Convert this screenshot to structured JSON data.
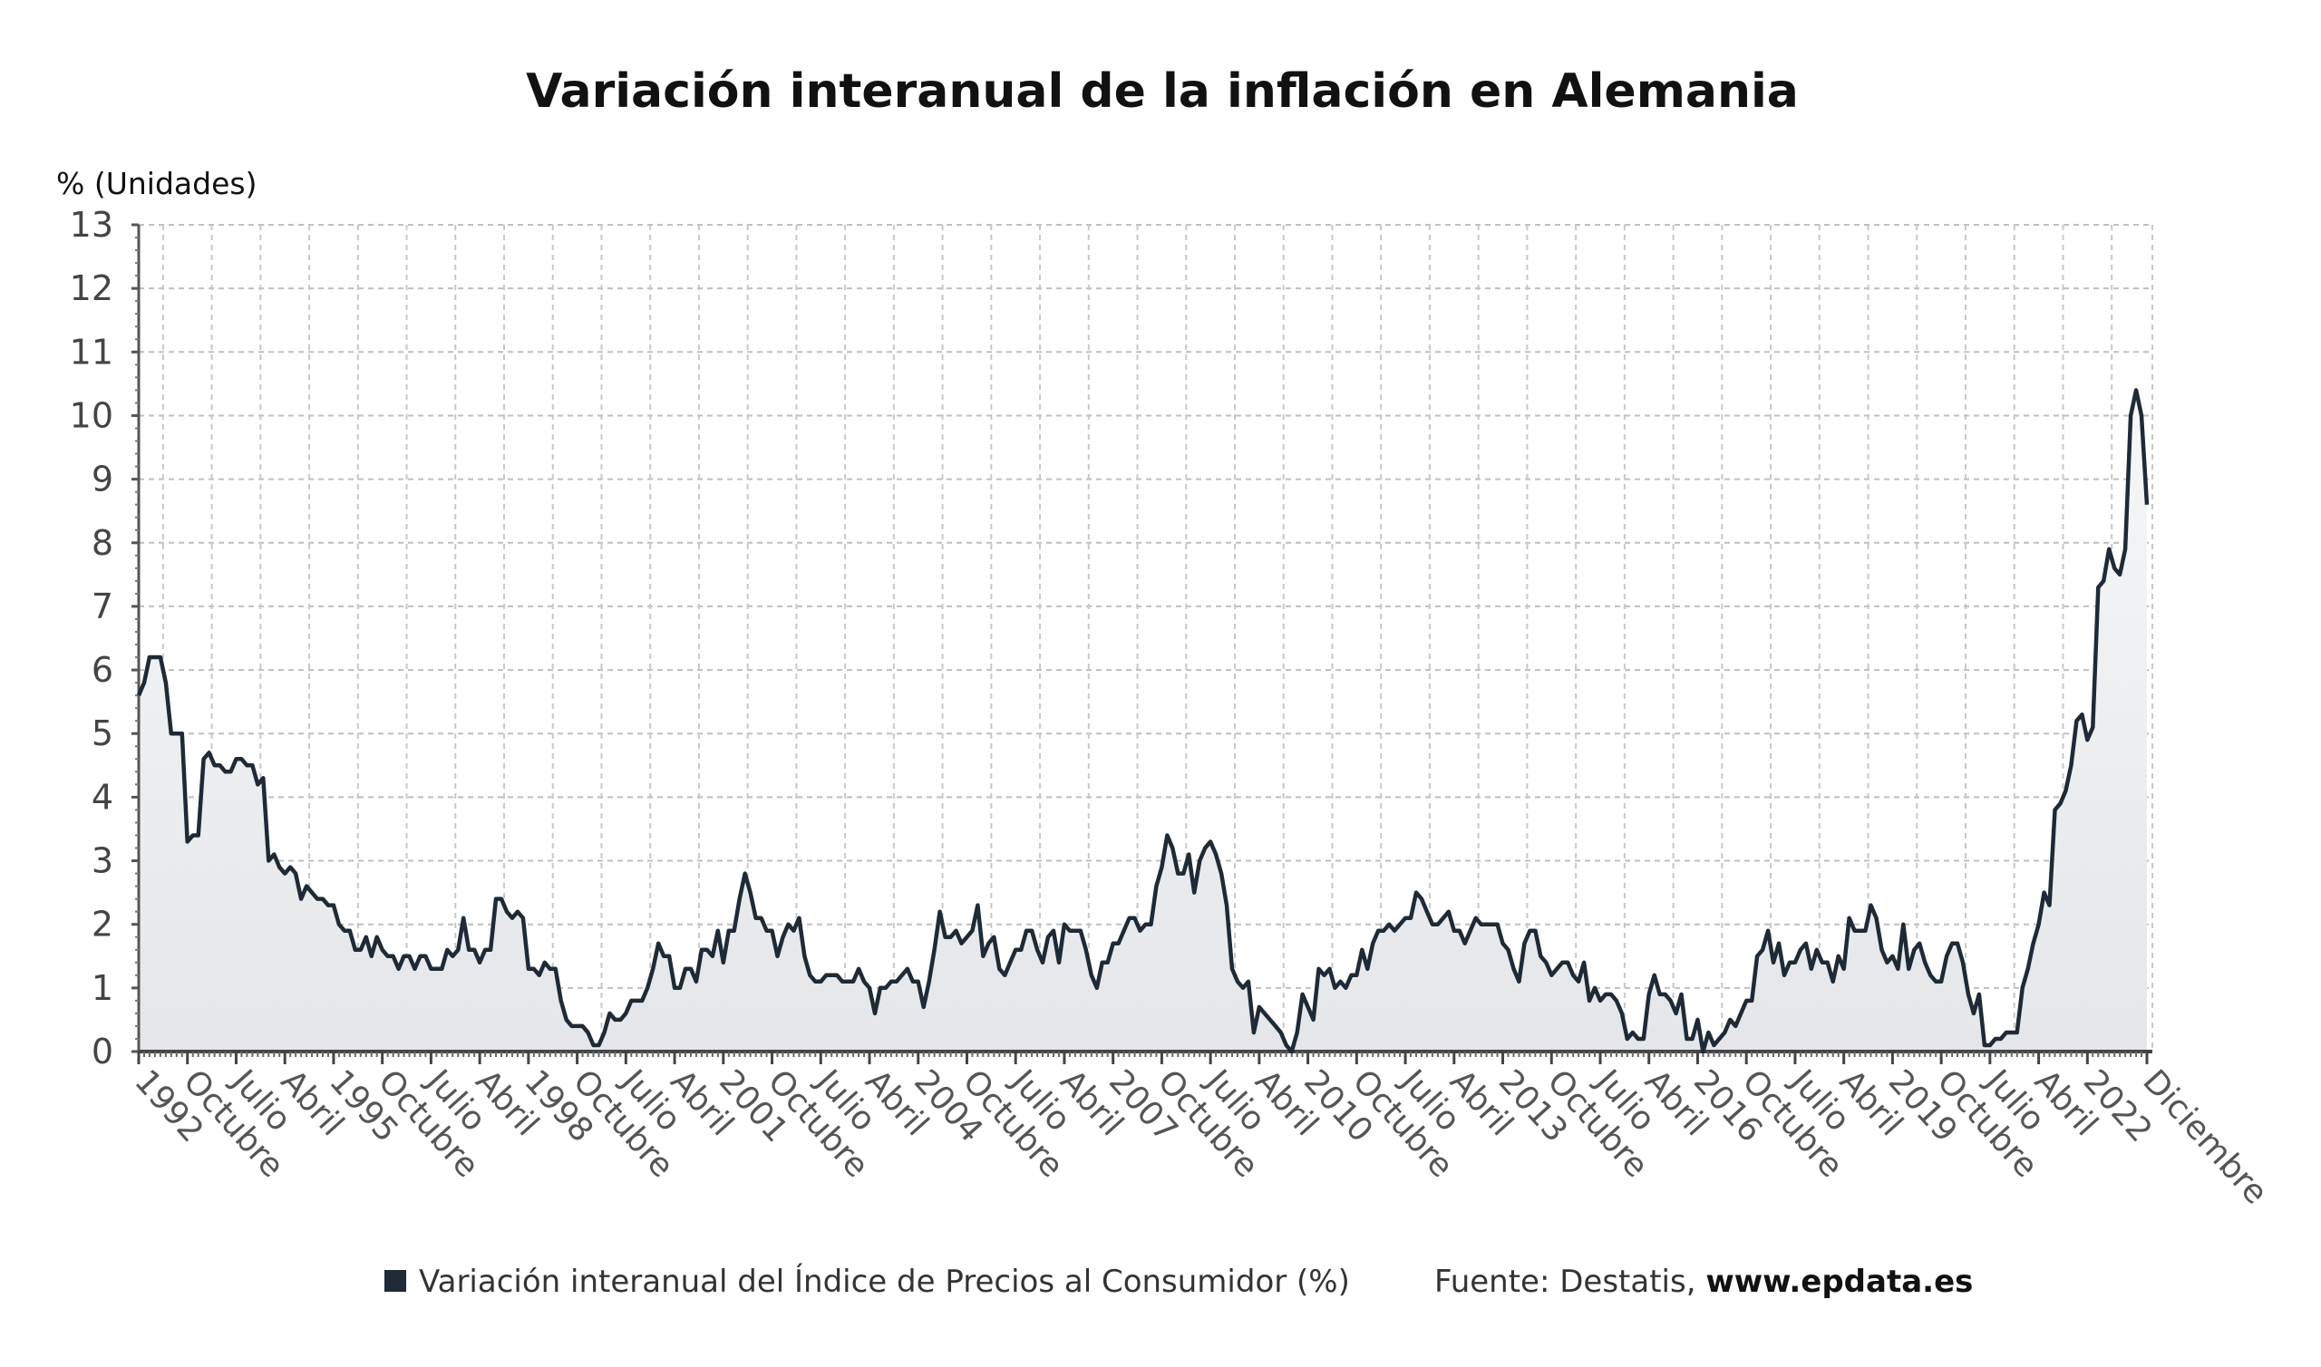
{
  "chart_data": {
    "type": "area",
    "title": "Variación interanual de la inflación en Alemania",
    "ylabel": "% (Unidades)",
    "xlabel": "",
    "ylim": [
      0,
      13
    ],
    "yticks": [
      0,
      1,
      2,
      3,
      4,
      5,
      6,
      7,
      8,
      9,
      10,
      11,
      12,
      13
    ],
    "grid": true,
    "start": "1992-01",
    "end": "2022-12",
    "frequency": "monthly",
    "x_tick_labels": [
      "1992",
      "Octubre",
      "Julio",
      "Abril",
      "1995",
      "Octubre",
      "Julio",
      "Abril",
      "1998",
      "Octubre",
      "Julio",
      "Abril",
      "2001",
      "Octubre",
      "Julio",
      "Abril",
      "2004",
      "Octubre",
      "Julio",
      "Abril",
      "2007",
      "Octubre",
      "Julio",
      "Abril",
      "2010",
      "Octubre",
      "Julio",
      "Abril",
      "2013",
      "Octubre",
      "Julio",
      "Abril",
      "2016",
      "Octubre",
      "Julio",
      "Abril",
      "2019",
      "Octubre",
      "Julio",
      "Abril",
      "2022",
      "Diciembre"
    ],
    "series": [
      {
        "name": "Variación interanual del Índice de Precios al Consumidor (%)",
        "color": "#1e2a35",
        "values": [
          5.6,
          5.8,
          6.2,
          6.2,
          6.2,
          5.8,
          5.0,
          5.0,
          5.0,
          3.3,
          3.4,
          3.4,
          4.6,
          4.7,
          4.5,
          4.5,
          4.4,
          4.4,
          4.6,
          4.6,
          4.5,
          4.5,
          4.2,
          4.3,
          3.0,
          3.1,
          2.9,
          2.8,
          2.9,
          2.8,
          2.4,
          2.6,
          2.5,
          2.4,
          2.4,
          2.3,
          2.3,
          2.0,
          1.9,
          1.9,
          1.6,
          1.6,
          1.8,
          1.5,
          1.8,
          1.6,
          1.5,
          1.5,
          1.3,
          1.5,
          1.5,
          1.3,
          1.5,
          1.5,
          1.3,
          1.3,
          1.3,
          1.6,
          1.5,
          1.6,
          2.1,
          1.6,
          1.6,
          1.4,
          1.6,
          1.6,
          2.4,
          2.4,
          2.2,
          2.1,
          2.2,
          2.1,
          1.3,
          1.3,
          1.2,
          1.4,
          1.3,
          1.3,
          0.8,
          0.5,
          0.4,
          0.4,
          0.4,
          0.3,
          0.1,
          0.1,
          0.3,
          0.6,
          0.5,
          0.5,
          0.6,
          0.8,
          0.8,
          0.8,
          1.0,
          1.3,
          1.7,
          1.5,
          1.5,
          1.0,
          1.0,
          1.3,
          1.3,
          1.1,
          1.6,
          1.6,
          1.5,
          1.9,
          1.4,
          1.9,
          1.9,
          2.4,
          2.8,
          2.5,
          2.1,
          2.1,
          1.9,
          1.9,
          1.5,
          1.8,
          2.0,
          1.9,
          2.1,
          1.5,
          1.2,
          1.1,
          1.1,
          1.2,
          1.2,
          1.2,
          1.1,
          1.1,
          1.1,
          1.3,
          1.1,
          1.0,
          0.6,
          1.0,
          1.0,
          1.1,
          1.1,
          1.2,
          1.3,
          1.1,
          1.1,
          0.7,
          1.1,
          1.6,
          2.2,
          1.8,
          1.8,
          1.9,
          1.7,
          1.8,
          1.9,
          2.3,
          1.5,
          1.7,
          1.8,
          1.3,
          1.2,
          1.4,
          1.6,
          1.6,
          1.9,
          1.9,
          1.6,
          1.4,
          1.8,
          1.9,
          1.4,
          2.0,
          1.9,
          1.9,
          1.9,
          1.6,
          1.2,
          1.0,
          1.4,
          1.4,
          1.7,
          1.7,
          1.9,
          2.1,
          2.1,
          1.9,
          2.0,
          2.0,
          2.6,
          2.9,
          3.4,
          3.2,
          2.8,
          2.8,
          3.1,
          2.5,
          3.0,
          3.2,
          3.3,
          3.1,
          2.8,
          2.3,
          1.3,
          1.1,
          1.0,
          1.1,
          0.3,
          0.7,
          0.6,
          0.5,
          0.4,
          0.3,
          0.1,
          0.0,
          0.3,
          0.9,
          0.7,
          0.5,
          1.3,
          1.2,
          1.3,
          1.0,
          1.1,
          1.0,
          1.2,
          1.2,
          1.6,
          1.3,
          1.7,
          1.9,
          1.9,
          2.0,
          1.9,
          2.0,
          2.1,
          2.1,
          2.5,
          2.4,
          2.2,
          2.0,
          2.0,
          2.1,
          2.2,
          1.9,
          1.9,
          1.7,
          1.9,
          2.1,
          2.0,
          2.0,
          2.0,
          2.0,
          1.7,
          1.6,
          1.3,
          1.1,
          1.7,
          1.9,
          1.9,
          1.5,
          1.4,
          1.2,
          1.3,
          1.4,
          1.4,
          1.2,
          1.1,
          1.4,
          0.8,
          1.0,
          0.8,
          0.9,
          0.9,
          0.8,
          0.6,
          0.2,
          0.3,
          0.2,
          0.2,
          0.9,
          1.2,
          0.9,
          0.9,
          0.8,
          0.6,
          0.9,
          0.2,
          0.2,
          0.5,
          0.0,
          0.3,
          0.1,
          0.2,
          0.3,
          0.5,
          0.4,
          0.6,
          0.8,
          0.8,
          1.5,
          1.6,
          1.9,
          1.4,
          1.7,
          1.2,
          1.4,
          1.4,
          1.6,
          1.7,
          1.3,
          1.6,
          1.4,
          1.4,
          1.1,
          1.5,
          1.3,
          2.1,
          1.9,
          1.9,
          1.9,
          2.3,
          2.1,
          1.6,
          1.4,
          1.5,
          1.3,
          2.0,
          1.3,
          1.6,
          1.7,
          1.4,
          1.2,
          1.1,
          1.1,
          1.5,
          1.7,
          1.7,
          1.4,
          0.9,
          0.6,
          0.9,
          0.1,
          0.1,
          0.2,
          0.2,
          0.3,
          0.3,
          0.3,
          1.0,
          1.3,
          1.7,
          2.0,
          2.5,
          2.3,
          3.8,
          3.9,
          4.1,
          4.5,
          5.2,
          5.3,
          4.9,
          5.1,
          7.3,
          7.4,
          7.9,
          7.6,
          7.5,
          7.9,
          10.0,
          10.4,
          10.0,
          8.6
        ]
      }
    ],
    "legend_position": "bottom",
    "source_label": "Fuente: Destatis, ",
    "source_site": "www.epdata.es"
  }
}
